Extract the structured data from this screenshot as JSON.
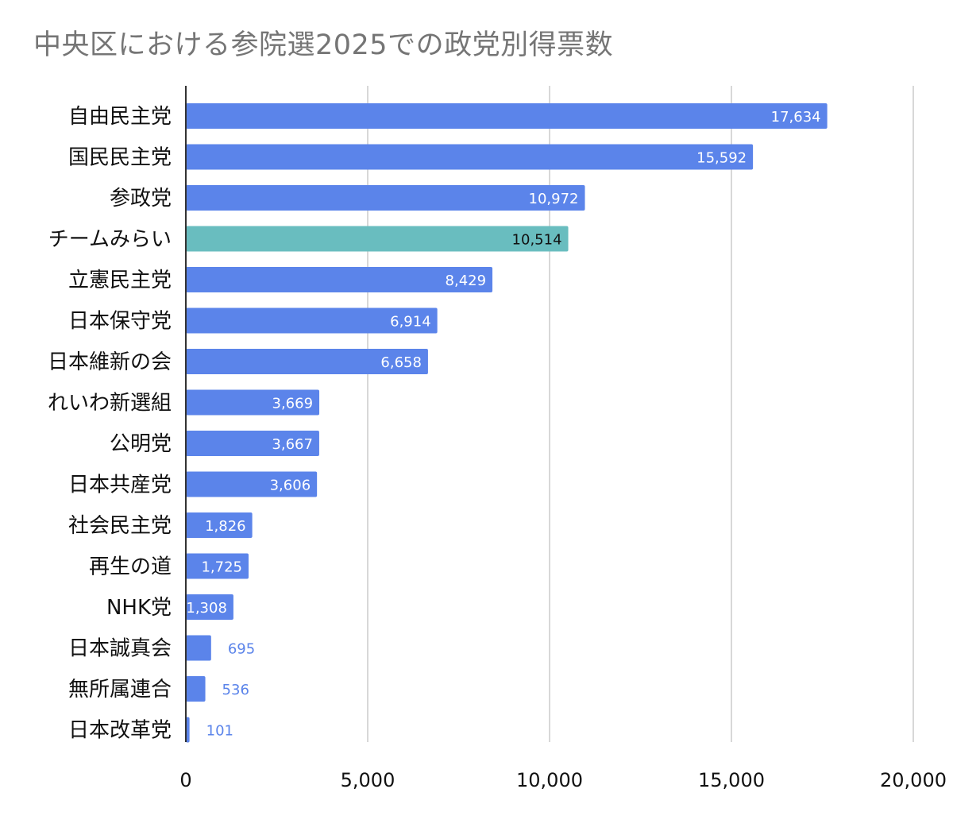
{
  "chart_data": {
    "type": "bar",
    "orientation": "horizontal",
    "title": "中央区における参院選2025での政党別得票数",
    "categories": [
      "自由民主党",
      "国民民主党",
      "参政党",
      "チームみらい",
      "立憲民主党",
      "日本保守党",
      "日本維新の会",
      "れいわ新選組",
      "公明党",
      "日本共産党",
      "社会民主党",
      "再生の道",
      "NHK党",
      "日本誠真会",
      "無所属連合",
      "日本改革党"
    ],
    "values": [
      17634,
      15592,
      10972,
      10514,
      8429,
      6914,
      6658,
      3669,
      3667,
      3606,
      1826,
      1725,
      1308,
      695,
      536,
      101
    ],
    "value_labels": [
      "17,634",
      "15,592",
      "10,972",
      "10,514",
      "8,429",
      "6,914",
      "6,658",
      "3,669",
      "3,667",
      "3,606",
      "1,826",
      "1,725",
      "1,308",
      "695",
      "536",
      "101"
    ],
    "xlim": [
      0,
      20000
    ],
    "xticks": [
      0,
      5000,
      10000,
      15000,
      20000
    ],
    "xtick_labels": [
      "0",
      "5,000",
      "10,000",
      "15,000",
      "20,000"
    ],
    "grid": "vertical",
    "legend": "none",
    "colors": {
      "bar": "#5b84ea",
      "highlight_bar": "#69bdbf",
      "highlight_index": 3,
      "label_inside": "#ffffff",
      "label_inside_highlight": "#111111",
      "label_outside": "#5b84ea",
      "grid": "#cccccc",
      "axis": "#333333"
    }
  }
}
